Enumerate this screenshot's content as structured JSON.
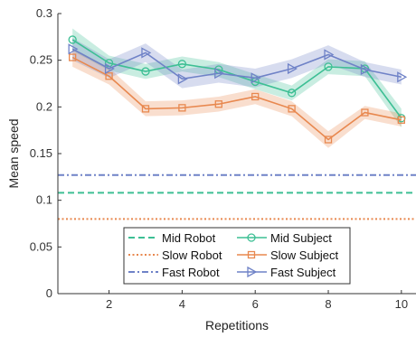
{
  "chart_data": {
    "type": "line",
    "xlabel": "Repetitions",
    "ylabel": "Mean speed",
    "xlim": [
      0.6,
      10.4
    ],
    "ylim": [
      0,
      0.3
    ],
    "x_ticks": [
      2,
      4,
      6,
      8,
      10
    ],
    "y_ticks": [
      0,
      0.05,
      0.1,
      0.15,
      0.2,
      0.25,
      0.3
    ],
    "y_tick_labels": [
      "0",
      "0.05",
      "0.1",
      "0.15",
      "0.2",
      "0.25",
      "0.3"
    ],
    "grid": false,
    "legend_position": "bottom-center",
    "x": [
      1,
      2,
      3,
      4,
      5,
      6,
      7,
      8,
      9,
      10
    ],
    "reference_lines": [
      {
        "name": "Mid Robot",
        "y": 0.108,
        "color": "#3dbf94",
        "style": "dashed"
      },
      {
        "name": "Slow Robot",
        "y": 0.08,
        "color": "#e8884f",
        "style": "dotted"
      },
      {
        "name": "Fast Robot",
        "y": 0.127,
        "color": "#6f82c7",
        "style": "dashdot"
      }
    ],
    "series": [
      {
        "name": "Mid Subject",
        "color": "#3dbf94",
        "marker": "circle",
        "values": [
          0.272,
          0.247,
          0.238,
          0.246,
          0.24,
          0.227,
          0.215,
          0.243,
          0.241,
          0.188
        ],
        "band": [
          0.012,
          0.008,
          0.008,
          0.008,
          0.008,
          0.008,
          0.008,
          0.008,
          0.008,
          0.01
        ]
      },
      {
        "name": "Slow Subject",
        "color": "#e8884f",
        "marker": "square",
        "values": [
          0.253,
          0.233,
          0.198,
          0.199,
          0.203,
          0.211,
          0.198,
          0.165,
          0.194,
          0.186
        ],
        "band": [
          0.01,
          0.009,
          0.008,
          0.008,
          0.008,
          0.008,
          0.008,
          0.009,
          0.007,
          0.007
        ]
      },
      {
        "name": "Fast Subject",
        "color": "#6f82c7",
        "marker": "triangle-right",
        "values": [
          0.262,
          0.241,
          0.258,
          0.23,
          0.236,
          0.231,
          0.241,
          0.256,
          0.24,
          0.232
        ],
        "band": [
          0.012,
          0.01,
          0.01,
          0.01,
          0.01,
          0.01,
          0.01,
          0.01,
          0.008,
          0.008
        ]
      }
    ],
    "legend": [
      {
        "label": "Mid Robot",
        "ref": "line:Mid Robot"
      },
      {
        "label": "Mid Subject",
        "ref": "series:Mid Subject"
      },
      {
        "label": "Slow Robot",
        "ref": "line:Slow Robot"
      },
      {
        "label": "Slow Subject",
        "ref": "series:Slow Subject"
      },
      {
        "label": "Fast Robot",
        "ref": "line:Fast Robot"
      },
      {
        "label": "Fast Subject",
        "ref": "series:Fast Subject"
      }
    ]
  }
}
